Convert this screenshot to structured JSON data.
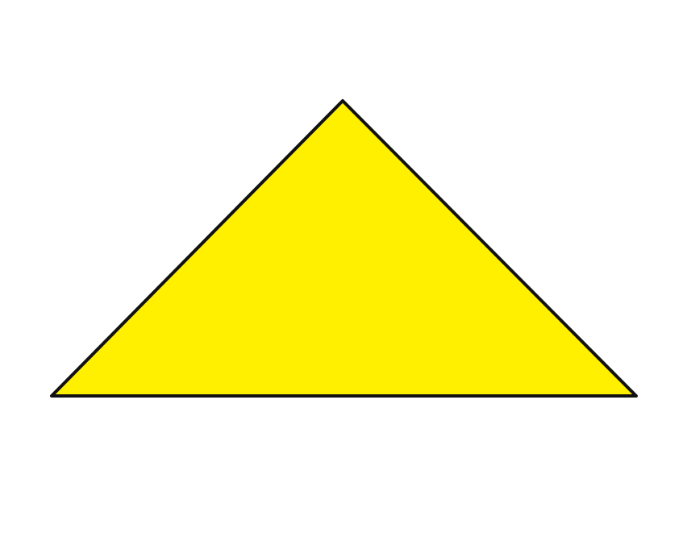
{
  "shape": {
    "kind": "triangle",
    "fill_color": "#FFF000",
    "stroke_color": "#111111"
  },
  "background_color": "#FFFFFF"
}
